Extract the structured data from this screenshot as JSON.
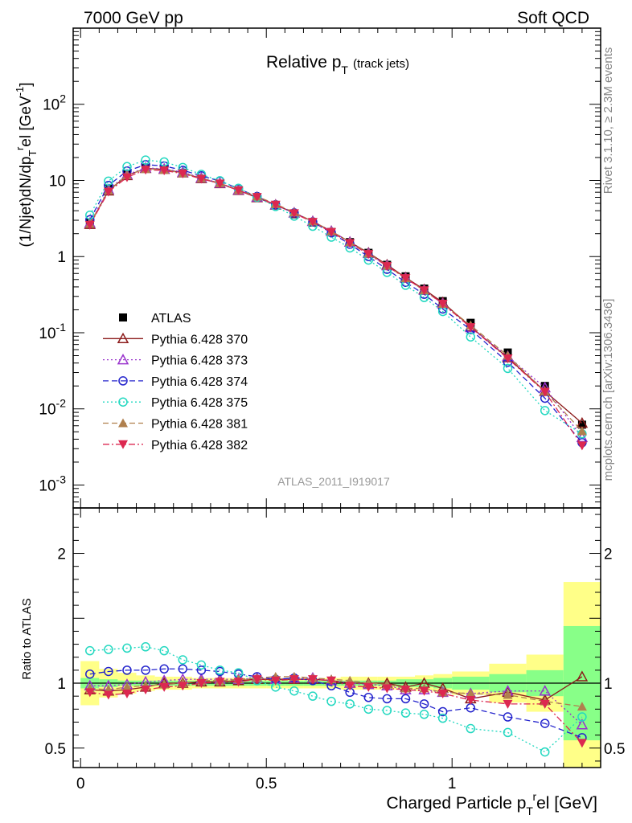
{
  "header": {
    "left": "7000 GeV pp",
    "right": "Soft QCD"
  },
  "plot_title": {
    "main": "Relative p",
    "sub": "T",
    "note": "(track jets)"
  },
  "side_labels": {
    "rivet": "Rivet 3.1.10, ≥ 2.3M events",
    "mcplots": "mcplots.cern.ch [arXiv:1306.3436]"
  },
  "watermark": "ATLAS_2011_I919017",
  "colors": {
    "ATLAS": "#000000",
    "370": "#8b1a1a",
    "373": "#9932cc",
    "374": "#2222cc",
    "375": "#22d8c0",
    "381": "#b0804e",
    "382": "#dc2850",
    "band_yellow": "#ffff88",
    "band_green": "#88ff88"
  },
  "chart_data": [
    {
      "type": "line",
      "name": "main",
      "ylabel": "(1/Njet)dN/dp",
      "ylabel_sub": "T",
      "ylabel_sup": "r",
      "ylabel_tail": "el [GeV",
      "ylabel_unit_sup": "-1",
      "ylabel_close": "]",
      "yscale": "log",
      "ylim": [
        0.0005,
        1000
      ],
      "xlim": [
        -0.02,
        1.4
      ],
      "yticks": [
        {
          "v": 0.001,
          "mant": "10",
          "exp": "-3"
        },
        {
          "v": 0.01,
          "mant": "10",
          "exp": "-2"
        },
        {
          "v": 0.1,
          "mant": "10",
          "exp": "-1"
        },
        {
          "v": 1,
          "mant": "1",
          "exp": ""
        },
        {
          "v": 10,
          "mant": "10",
          "exp": ""
        },
        {
          "v": 100,
          "mant": "10",
          "exp": "2"
        }
      ],
      "x": [
        0.025,
        0.075,
        0.125,
        0.175,
        0.225,
        0.275,
        0.325,
        0.375,
        0.425,
        0.475,
        0.525,
        0.575,
        0.625,
        0.675,
        0.725,
        0.775,
        0.825,
        0.875,
        0.925,
        0.975,
        1.05,
        1.15,
        1.25,
        1.35
      ],
      "legend_entries": [
        "ATLAS",
        "Pythia 6.428 370",
        "Pythia 6.428 373",
        "Pythia 6.428 374",
        "Pythia 6.428 375",
        "Pythia 6.428 381",
        "Pythia 6.428 382"
      ],
      "series": [
        {
          "key": "ATLAS",
          "values": [
            2.8,
            7.8,
            12.0,
            14.5,
            14.0,
            12.5,
            10.5,
            9.0,
            7.3,
            5.9,
            4.7,
            3.6,
            2.8,
            2.1,
            1.55,
            1.12,
            0.78,
            0.55,
            0.38,
            0.26,
            0.135,
            0.055,
            0.02,
            0.0062
          ]
        },
        {
          "key": "370",
          "values": [
            2.65,
            7.3,
            11.6,
            14.4,
            14.0,
            12.6,
            10.6,
            9.1,
            7.4,
            5.95,
            4.75,
            3.75,
            2.9,
            2.15,
            1.55,
            1.12,
            0.78,
            0.53,
            0.37,
            0.25,
            0.12,
            0.047,
            0.017,
            0.0065
          ]
        },
        {
          "key": "373",
          "values": [
            2.75,
            7.6,
            11.9,
            14.6,
            14.2,
            12.8,
            10.8,
            9.2,
            7.5,
            6.05,
            4.8,
            3.75,
            2.9,
            2.15,
            1.55,
            1.1,
            0.76,
            0.52,
            0.36,
            0.24,
            0.117,
            0.049,
            0.019,
            0.0042
          ]
        },
        {
          "key": "374",
          "values": [
            3.05,
            8.6,
            13.3,
            16.1,
            15.5,
            13.6,
            11.5,
            9.8,
            7.8,
            6.15,
            4.8,
            3.75,
            2.85,
            2.05,
            1.45,
            1.0,
            0.68,
            0.46,
            0.32,
            0.205,
            0.11,
            0.041,
            0.0138,
            0.0036
          ]
        },
        {
          "key": "375",
          "values": [
            3.5,
            9.8,
            15.2,
            18.5,
            17.5,
            14.8,
            12.0,
            9.9,
            7.9,
            6.0,
            4.55,
            3.4,
            2.5,
            1.8,
            1.3,
            0.9,
            0.62,
            0.42,
            0.29,
            0.19,
            0.088,
            0.034,
            0.0095,
            0.0047
          ]
        },
        {
          "key": "381",
          "values": [
            2.7,
            7.4,
            11.7,
            14.2,
            13.8,
            12.5,
            10.7,
            9.2,
            7.5,
            6.15,
            4.9,
            3.8,
            2.9,
            2.15,
            1.55,
            1.1,
            0.76,
            0.52,
            0.36,
            0.24,
            0.125,
            0.05,
            0.017,
            0.0051
          ]
        },
        {
          "key": "382",
          "values": [
            2.6,
            7.1,
            11.0,
            13.8,
            13.5,
            12.3,
            10.5,
            9.1,
            7.4,
            6.05,
            4.8,
            3.7,
            2.85,
            2.1,
            1.5,
            1.08,
            0.75,
            0.52,
            0.36,
            0.24,
            0.118,
            0.046,
            0.0167,
            0.0033
          ]
        }
      ]
    },
    {
      "type": "line",
      "name": "ratio",
      "ylabel": "Ratio to ATLAS",
      "xlabel": "Charged Particle p",
      "xlabel_sub": "T",
      "xlabel_sup": "r",
      "xlabel_tail": "el [GeV]",
      "ylim": [
        0.35,
        2.35
      ],
      "xlim": [
        -0.02,
        1.4
      ],
      "xticks": [
        {
          "v": 0,
          "label": "0"
        },
        {
          "v": 0.5,
          "label": "0.5"
        },
        {
          "v": 1,
          "label": "1"
        }
      ],
      "yticks": [
        {
          "v": 0.5,
          "label": "0.5"
        },
        {
          "v": 1,
          "label": "1"
        },
        {
          "v": 2,
          "label": "2"
        }
      ],
      "bands": {
        "edges": [
          0,
          0.05,
          0.1,
          0.15,
          0.2,
          0.25,
          0.3,
          0.35,
          0.4,
          0.45,
          0.5,
          0.55,
          0.6,
          0.65,
          0.7,
          0.75,
          0.8,
          0.85,
          0.9,
          0.95,
          1.0,
          1.1,
          1.2,
          1.3,
          1.4
        ],
        "yellow": [
          0.17,
          0.11,
          0.08,
          0.06,
          0.05,
          0.05,
          0.04,
          0.04,
          0.04,
          0.04,
          0.04,
          0.04,
          0.04,
          0.04,
          0.05,
          0.05,
          0.05,
          0.05,
          0.06,
          0.07,
          0.09,
          0.15,
          0.22,
          0.78
        ],
        "green": [
          0.04,
          0.03,
          0.02,
          0.02,
          0.02,
          0.02,
          0.02,
          0.02,
          0.02,
          0.02,
          0.02,
          0.02,
          0.02,
          0.02,
          0.02,
          0.02,
          0.02,
          0.03,
          0.03,
          0.04,
          0.05,
          0.07,
          0.1,
          0.44
        ]
      },
      "series": [
        {
          "key": "370",
          "values": [
            0.95,
            0.94,
            0.95,
            0.97,
            1.0,
            1.0,
            1.01,
            1.01,
            1.02,
            1.03,
            1.03,
            1.03,
            1.03,
            1.02,
            1.0,
            1.0,
            1.0,
            0.97,
            1.0,
            0.96,
            0.88,
            0.93,
            0.87,
            1.05
          ]
        },
        {
          "key": "373",
          "values": [
            0.98,
            0.98,
            0.99,
            1.01,
            1.02,
            1.03,
            1.03,
            1.03,
            1.03,
            1.04,
            1.03,
            1.04,
            1.04,
            1.02,
            1.0,
            0.99,
            0.98,
            0.95,
            0.95,
            0.93,
            0.92,
            0.94,
            0.94,
            0.68
          ]
        },
        {
          "key": "374",
          "values": [
            1.07,
            1.09,
            1.1,
            1.1,
            1.11,
            1.11,
            1.1,
            1.09,
            1.07,
            1.05,
            1.03,
            1.04,
            1.02,
            0.98,
            0.93,
            0.89,
            0.88,
            0.88,
            0.84,
            0.78,
            0.81,
            0.74,
            0.69,
            0.58
          ]
        },
        {
          "key": "375",
          "values": [
            1.25,
            1.26,
            1.27,
            1.28,
            1.25,
            1.18,
            1.14,
            1.1,
            1.08,
            1.02,
            0.97,
            0.94,
            0.9,
            0.86,
            0.84,
            0.8,
            0.79,
            0.77,
            0.76,
            0.73,
            0.65,
            0.62,
            0.47,
            0.74
          ]
        },
        {
          "key": "381",
          "values": [
            0.96,
            0.95,
            0.97,
            0.98,
            0.99,
            1.0,
            1.02,
            1.02,
            1.03,
            1.04,
            1.05,
            1.05,
            1.04,
            1.03,
            1.02,
            1.0,
            0.99,
            0.96,
            0.96,
            0.93,
            0.92,
            0.91,
            0.86,
            0.82
          ]
        },
        {
          "key": "382",
          "values": [
            0.93,
            0.91,
            0.92,
            0.95,
            0.97,
            0.98,
            1.0,
            1.01,
            1.01,
            1.03,
            1.02,
            1.03,
            1.03,
            1.02,
            0.98,
            0.97,
            0.96,
            0.95,
            0.94,
            0.92,
            0.87,
            0.84,
            0.84,
            0.54
          ]
        }
      ]
    }
  ]
}
